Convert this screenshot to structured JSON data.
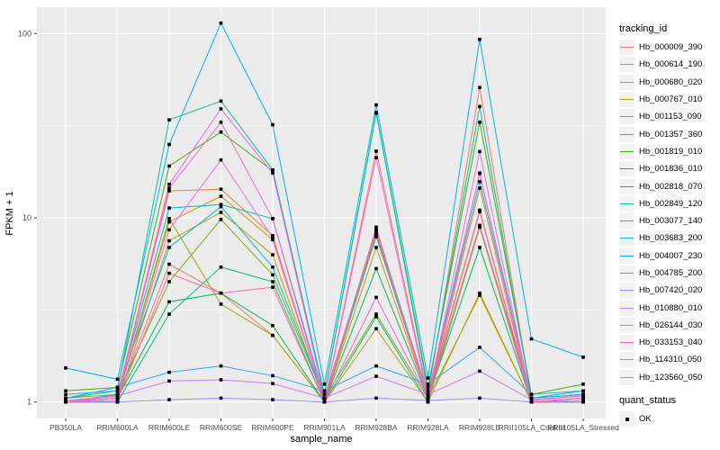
{
  "chart_data": {
    "type": "line",
    "title": "",
    "xlabel": "sample_name",
    "ylabel": "FPKM + 1",
    "y_scale": "log10",
    "y_ticks": [
      1,
      10,
      100
    ],
    "ylim": [
      0.82,
      139
    ],
    "grid": true,
    "legend_position": "right",
    "panel_color": "#EBEBEB",
    "grid_color": "#FFFFFF",
    "point_shape": "filled-square",
    "point_color": "#000000",
    "categories": [
      "PB350LA",
      "RRIM600LA",
      "RRIM600LE",
      "RRIM600SE",
      "RRIM600PE",
      "RRIM901LA",
      "RRIM928BA",
      "RRIM928LA",
      "RRIM928LE",
      "RRII105LA_Control",
      "RRII105LA_Stressed"
    ],
    "series": [
      {
        "name": "Hb_000009_390",
        "color": "#F8766D",
        "values": [
          1.0,
          1.05,
          5.6,
          3.9,
          2.3,
          1.0,
          23,
          1.1,
          51,
          1.05,
          1.1
        ]
      },
      {
        "name": "Hb_000614_190",
        "color": "#EA8331",
        "values": [
          1.0,
          1.1,
          14,
          14.3,
          8.0,
          1.0,
          8.4,
          1.05,
          14.5,
          1.0,
          1.05
        ]
      },
      {
        "name": "Hb_000680_020",
        "color": "#D89000",
        "values": [
          1.0,
          1.05,
          9.5,
          13.1,
          7.6,
          1.0,
          6.9,
          1.05,
          10.8,
          1.0,
          1.05
        ]
      },
      {
        "name": "Hb_000767_010",
        "color": "#C09B00",
        "values": [
          1.0,
          1.0,
          7.5,
          10.7,
          6.3,
          1.0,
          2.5,
          1.0,
          3.9,
          1.0,
          1.0
        ]
      },
      {
        "name": "Hb_001153_090",
        "color": "#A3A500",
        "values": [
          1.0,
          1.05,
          9.9,
          3.4,
          2.3,
          1.0,
          8.1,
          1.05,
          3.8,
          1.0,
          1.05
        ]
      },
      {
        "name": "Hb_001357_360",
        "color": "#7CAE00",
        "values": [
          1.05,
          1.1,
          4.5,
          9.8,
          4.9,
          1.05,
          3.0,
          1.05,
          9.1,
          1.05,
          1.1
        ]
      },
      {
        "name": "Hb_001819_010",
        "color": "#39B600",
        "values": [
          1.15,
          1.2,
          19.1,
          29.2,
          18,
          1.1,
          37.3,
          1.2,
          33,
          1.1,
          1.25
        ]
      },
      {
        "name": "Hb_001836_010",
        "color": "#00BB4E",
        "values": [
          1.0,
          1.05,
          3.5,
          3.9,
          2.6,
          1.0,
          5.3,
          1.05,
          6.9,
          1.0,
          1.05
        ]
      },
      {
        "name": "Hb_002818_070",
        "color": "#00BF7D",
        "values": [
          1.0,
          1.0,
          3.0,
          5.4,
          4.5,
          1.0,
          2.9,
          1.0,
          8.9,
          1.0,
          1.0
        ]
      },
      {
        "name": "Hb_002849_120",
        "color": "#00C1A3",
        "values": [
          1.05,
          1.15,
          34,
          43,
          18.2,
          1.1,
          37,
          1.15,
          40.2,
          1.05,
          1.15
        ]
      },
      {
        "name": "Hb_003077_140",
        "color": "#00BFC4",
        "values": [
          1.0,
          1.1,
          11.3,
          11.8,
          9.9,
          1.05,
          8.7,
          1.1,
          15.7,
          1.05,
          1.1
        ]
      },
      {
        "name": "Hb_003683_200",
        "color": "#00BAE0",
        "values": [
          1.1,
          1.15,
          6.9,
          11.5,
          5.4,
          1.05,
          7.9,
          1.1,
          17.4,
          1.05,
          1.1
        ]
      },
      {
        "name": "Hb_004007_230",
        "color": "#00B0F6",
        "values": [
          1.53,
          1.33,
          25,
          114,
          32,
          1.25,
          41,
          1.35,
          93,
          2.2,
          1.75
        ]
      },
      {
        "name": "Hb_004785_200",
        "color": "#35A2FF",
        "values": [
          1.05,
          1.2,
          1.45,
          1.57,
          1.39,
          1.15,
          1.57,
          1.25,
          1.98,
          1.1,
          1.15
        ]
      },
      {
        "name": "Hb_007420_020",
        "color": "#9590FF",
        "values": [
          1.0,
          1.0,
          1.03,
          1.05,
          1.03,
          1.0,
          1.05,
          1.02,
          1.05,
          1.0,
          1.0
        ]
      },
      {
        "name": "Hb_010880_010",
        "color": "#C77CFF",
        "values": [
          1.02,
          1.08,
          1.3,
          1.32,
          1.26,
          1.05,
          1.38,
          1.1,
          1.47,
          1.03,
          1.08
        ]
      },
      {
        "name": "Hb_026144_030",
        "color": "#E76BF3",
        "values": [
          1.0,
          1.05,
          8.6,
          20.6,
          7.8,
          1.0,
          21.2,
          1.05,
          22.9,
          1.0,
          1.05
        ]
      },
      {
        "name": "Hb_033153_040",
        "color": "#FA62DB",
        "values": [
          1.0,
          1.08,
          15.2,
          39,
          17.5,
          1.05,
          8.6,
          1.08,
          11,
          1.02,
          1.08
        ]
      },
      {
        "name": "Hb_114310_050",
        "color": "#FF61CC",
        "values": [
          1.0,
          1.05,
          14.5,
          33,
          9.9,
          1.0,
          3.7,
          1.05,
          17.5,
          1.0,
          1.05
        ]
      },
      {
        "name": "Hb_123560_050",
        "color": "#FF65AC",
        "values": [
          1.0,
          1.02,
          5.0,
          3.9,
          4.2,
          1.0,
          8.9,
          1.02,
          8.9,
          1.0,
          1.02
        ]
      }
    ]
  },
  "legend": {
    "tracking_title": "tracking_id",
    "quant_title": "quant_status",
    "quant_items": [
      {
        "label": "OK"
      }
    ]
  }
}
